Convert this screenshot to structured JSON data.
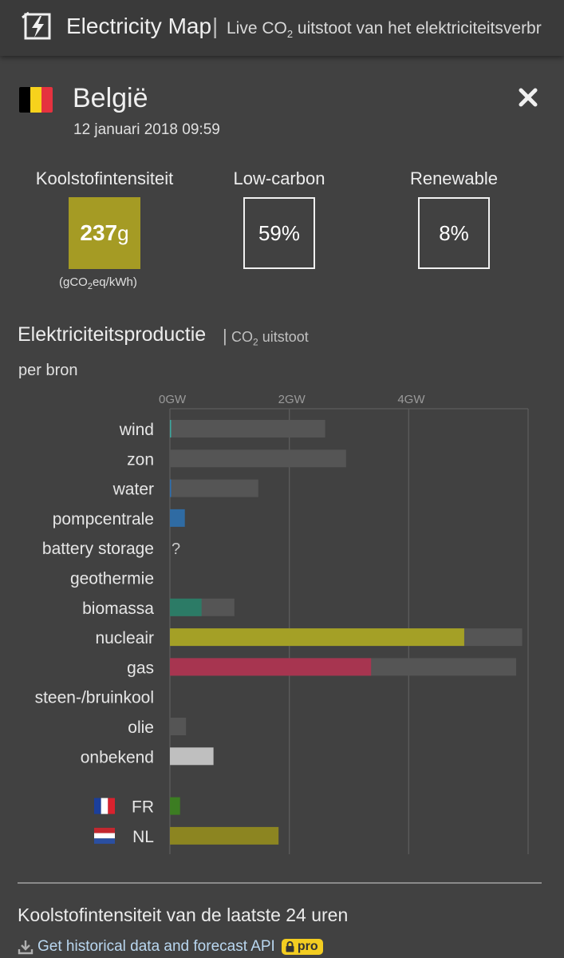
{
  "header": {
    "app_title": "Electricity Map",
    "separator": "|",
    "subtitle_prefix": "Live CO",
    "subtitle_sub": "2",
    "subtitle_suffix": " uitstoot van het elektriciteitsverbr",
    "logo_icon": "lightning-map-icon"
  },
  "country": {
    "name": "België",
    "datetime": "12 januari 2018 09:59",
    "flag_colors": [
      "#000000",
      "#f7d21c",
      "#e5323f"
    ],
    "close_icon": "close-icon"
  },
  "metrics": {
    "carbon_label": "Koolstofintensiteit",
    "carbon_value": "237",
    "carbon_unit": "g",
    "carbon_color": "#a59b24",
    "unit_note_prefix": "(gCO",
    "unit_note_sub": "2",
    "unit_note_suffix": "eq/kWh)",
    "lowcarbon_label": "Low-carbon",
    "lowcarbon_value": "59%",
    "renewable_label": "Renewable",
    "renewable_value": "8%"
  },
  "section": {
    "title": "Elektriciteitsproductie",
    "separator": "|",
    "alt_prefix": "CO",
    "alt_sub": "2",
    "alt_suffix": " uitstoot",
    "per_source": "per bron"
  },
  "chart_data": {
    "type": "bar",
    "orientation": "horizontal",
    "xlim": [
      0,
      6
    ],
    "x_unit": "GW",
    "tick_values": [
      0,
      2,
      4
    ],
    "tick_labels": [
      "0GW",
      "2GW",
      "4GW"
    ],
    "categories": [
      "wind",
      "zon",
      "water",
      "pompcentrale",
      "battery storage",
      "geothermie",
      "biomassa",
      "nucleair",
      "gas",
      "steen-/bruinkool",
      "olie",
      "onbekend"
    ],
    "series": [
      {
        "values": [
          0.02,
          0,
          0.02,
          0.25,
          null,
          0,
          0.53,
          4.93,
          3.37,
          0,
          0,
          0.73
        ]
      },
      {
        "values": [
          2.6,
          2.95,
          1.48,
          0,
          null,
          0,
          1.08,
          5.9,
          5.8,
          0,
          0.27,
          0
        ]
      }
    ],
    "colors": [
      "#3ba9a0",
      "#4f4f4f",
      "#2b6fb3",
      "#2f6ba3",
      "#8a8a8a",
      "#8a8a8a",
      "#2c7b66",
      "#a4a026",
      "#a73550",
      "#8a8a8a",
      "#8a8a8a",
      "#bfbfbf"
    ],
    "capacity_color": "#555555",
    "missing_marker": "?",
    "exchanges": [
      {
        "label": "FR",
        "value": 0.17,
        "color": "#3c7d22",
        "flag_colors": [
          "#1b3f9c",
          "#ffffff",
          "#d9222e"
        ]
      },
      {
        "label": "NL",
        "value": 1.82,
        "color": "#8c8521",
        "flag_colors": [
          "#c3272f",
          "#ffffff",
          "#2a4fa1"
        ]
      }
    ]
  },
  "history": {
    "title": "Koolstofintensiteit van de laatste 24 uren",
    "api_link": "Get historical data and forecast API",
    "pro_badge": "pro",
    "download_icon": "download-icon",
    "lock_icon": "lock-icon"
  }
}
